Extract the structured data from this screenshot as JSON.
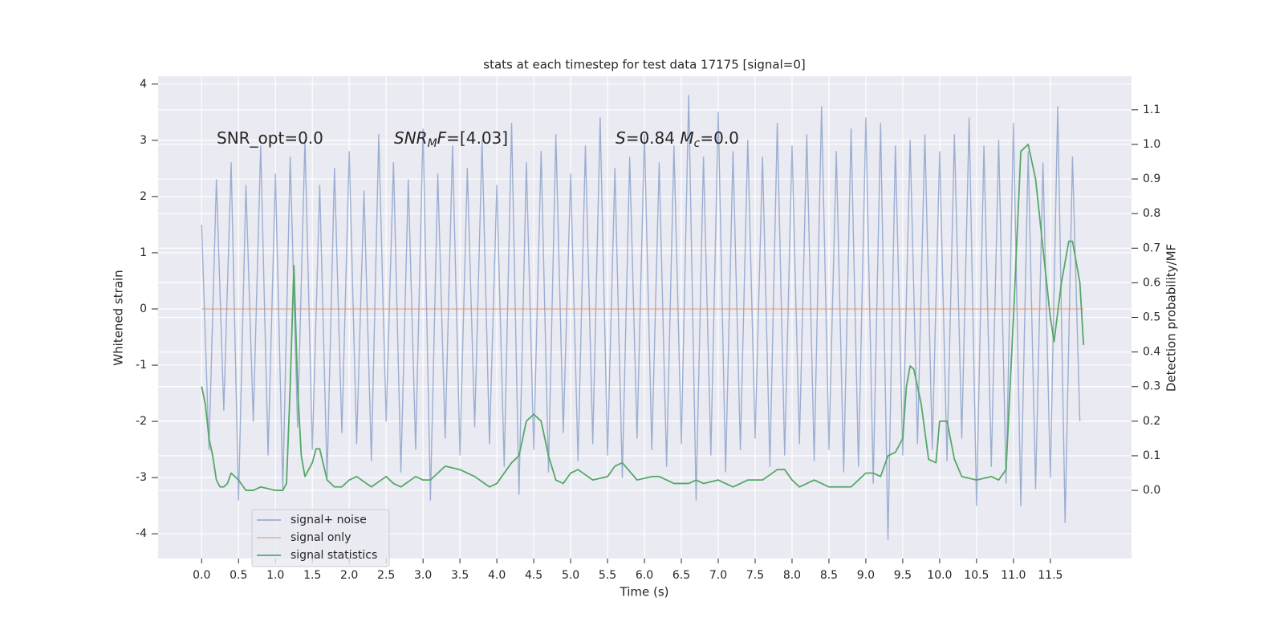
{
  "chart_data": {
    "type": "line",
    "title": "stats at each timestep for test data 17175 [signal=0]",
    "xlabel": "Time (s)",
    "ylabel": "Whitened strain",
    "y2label": "Detection probability/MF",
    "xlim": [
      -0.59,
      12.6
    ],
    "ylim": [
      -4.44,
      4.14
    ],
    "y2lim": [
      -0.197,
      1.197
    ],
    "xticks": [
      {
        "value": 0,
        "label": "0.0"
      },
      0.5,
      {
        "value": 1,
        "label": "1.0"
      },
      1.5,
      {
        "value": 2,
        "label": "2.0"
      },
      2.5,
      {
        "value": 3,
        "label": "3.0"
      },
      3.5,
      {
        "value": 4,
        "label": "4.0"
      },
      4.5,
      {
        "value": 5,
        "label": "5.0"
      },
      5.5,
      {
        "value": 6,
        "label": "6.0"
      },
      6.5,
      {
        "value": 7,
        "label": "7.0"
      },
      7.5,
      {
        "value": 8,
        "label": "8.0"
      },
      8.5,
      {
        "value": 9,
        "label": "9.0"
      },
      9.5,
      {
        "value": 10,
        "label": "10.0"
      },
      10.5,
      {
        "value": 11,
        "label": "11.0"
      },
      11.5
    ],
    "yticks": [
      -4,
      -3,
      -2,
      -1,
      0,
      1,
      2,
      3,
      4
    ],
    "y2ticks": [
      {
        "value": 0,
        "label": "0.0"
      },
      0.1,
      0.2,
      0.3,
      0.4,
      0.5,
      0.6,
      0.7,
      0.8,
      0.9,
      {
        "value": 1,
        "label": "1.0"
      },
      1.1
    ],
    "grid": true,
    "legend": "lower left",
    "annotations": [
      [
        {
          "text": "SNR_opt=0.0",
          "style": "normal"
        }
      ],
      [
        {
          "text": "SNR",
          "style": "italic"
        },
        {
          "text": "M",
          "style": "sub"
        },
        {
          "text": "F",
          "style": "italic"
        },
        {
          "text": "=[4.03]",
          "style": "normal"
        }
      ],
      [
        {
          "text": "S",
          "style": "italic"
        },
        {
          "text": "=0.84   ",
          "style": "normal"
        },
        {
          "text": "M",
          "style": "italic"
        },
        {
          "text": "c",
          "style": "sub"
        },
        {
          "text": "=0.0",
          "style": "normal"
        }
      ]
    ],
    "series": [
      {
        "name": "signal+ noise",
        "color": "#4c72b0",
        "opacity": 0.5,
        "x": [
          0.0,
          0.1,
          0.2,
          0.3,
          0.4,
          0.5,
          0.6,
          0.7,
          0.8,
          0.9,
          1.0,
          1.1,
          1.2,
          1.3,
          1.4,
          1.5,
          1.6,
          1.7,
          1.8,
          1.9,
          2.0,
          2.1,
          2.2,
          2.3,
          2.4,
          2.5,
          2.6,
          2.7,
          2.8,
          2.9,
          3.0,
          3.1,
          3.2,
          3.3,
          3.4,
          3.5,
          3.6,
          3.7,
          3.8,
          3.9,
          4.0,
          4.1,
          4.2,
          4.3,
          4.4,
          4.5,
          4.6,
          4.7,
          4.8,
          4.9,
          5.0,
          5.1,
          5.2,
          5.3,
          5.4,
          5.5,
          5.6,
          5.7,
          5.8,
          5.9,
          6.0,
          6.1,
          6.2,
          6.3,
          6.4,
          6.5,
          6.6,
          6.7,
          6.8,
          6.9,
          7.0,
          7.1,
          7.2,
          7.3,
          7.4,
          7.5,
          7.6,
          7.7,
          7.8,
          7.9,
          8.0,
          8.1,
          8.2,
          8.3,
          8.4,
          8.5,
          8.6,
          8.7,
          8.8,
          8.9,
          9.0,
          9.1,
          9.2,
          9.3,
          9.4,
          9.5,
          9.6,
          9.7,
          9.8,
          9.9,
          10.0,
          10.1,
          10.2,
          10.3,
          10.4,
          10.5,
          10.6,
          10.7,
          10.8,
          10.9,
          11.0,
          11.1,
          11.2,
          11.3,
          11.4,
          11.5,
          11.6,
          11.7,
          11.8,
          11.9
        ],
        "values": [
          1.5,
          -2.5,
          2.3,
          -1.8,
          2.6,
          -3.4,
          2.2,
          -2.0,
          2.9,
          -2.6,
          2.4,
          -3.2,
          2.7,
          -2.1,
          3.0,
          -2.5,
          2.2,
          -3.0,
          2.5,
          -2.2,
          2.8,
          -2.4,
          2.1,
          -2.7,
          3.1,
          -2.0,
          2.6,
          -2.9,
          2.3,
          -2.5,
          3.2,
          -3.4,
          2.4,
          -2.3,
          2.9,
          -2.6,
          2.5,
          -2.1,
          3.0,
          -2.4,
          2.2,
          -2.8,
          3.3,
          -3.3,
          2.6,
          -2.5,
          2.8,
          -2.9,
          3.1,
          -2.2,
          2.4,
          -2.7,
          2.9,
          -2.4,
          3.4,
          -2.6,
          2.5,
          -3.0,
          2.7,
          -2.3,
          3.1,
          -2.5,
          2.6,
          -2.8,
          2.9,
          -2.4,
          3.8,
          -3.4,
          2.7,
          -2.6,
          3.5,
          -2.9,
          2.8,
          -2.5,
          3.0,
          -2.3,
          2.7,
          -2.8,
          3.3,
          -2.6,
          2.9,
          -2.4,
          3.1,
          -2.7,
          3.6,
          -2.5,
          2.8,
          -2.9,
          3.2,
          -2.8,
          3.4,
          -3.1,
          3.3,
          -4.1,
          2.9,
          -2.6,
          3.0,
          -2.4,
          3.1,
          -2.5,
          2.8,
          -2.7,
          3.1,
          -2.3,
          3.4,
          -3.5,
          2.9,
          -2.8,
          3.0,
          -3.1,
          3.3,
          -3.5,
          2.8,
          -3.2,
          2.6,
          -3.0,
          3.6,
          -3.8,
          2.7,
          -2.0
        ]
      },
      {
        "name": "signal only",
        "color": "#dd8452",
        "opacity": 0.5,
        "x": [
          0.0,
          11.95
        ],
        "values": [
          0,
          0
        ]
      },
      {
        "name": "signal statistics",
        "color": "#55a868",
        "opacity": 1,
        "axis": "y2",
        "x": [
          0.0,
          0.05,
          0.1,
          0.15,
          0.2,
          0.25,
          0.3,
          0.35,
          0.4,
          0.5,
          0.6,
          0.7,
          0.8,
          1.0,
          1.1,
          1.15,
          1.2,
          1.25,
          1.3,
          1.35,
          1.4,
          1.5,
          1.55,
          1.6,
          1.7,
          1.8,
          1.9,
          2.0,
          2.1,
          2.3,
          2.5,
          2.6,
          2.7,
          2.9,
          3.0,
          3.1,
          3.3,
          3.5,
          3.7,
          3.9,
          4.0,
          4.2,
          4.3,
          4.4,
          4.5,
          4.6,
          4.7,
          4.8,
          4.9,
          5.0,
          5.1,
          5.3,
          5.5,
          5.6,
          5.7,
          5.9,
          6.1,
          6.2,
          6.4,
          6.6,
          6.7,
          6.8,
          7.0,
          7.2,
          7.4,
          7.6,
          7.8,
          7.9,
          8.0,
          8.1,
          8.3,
          8.5,
          8.8,
          9.0,
          9.1,
          9.2,
          9.3,
          9.4,
          9.5,
          9.55,
          9.6,
          9.65,
          9.75,
          9.85,
          9.95,
          10.0,
          10.1,
          10.2,
          10.3,
          10.5,
          10.7,
          10.8,
          10.9,
          11.0,
          11.1,
          11.2,
          11.3,
          11.4,
          11.5,
          11.55,
          11.65,
          11.75,
          11.8,
          11.9,
          11.95
        ],
        "values": [
          0.3,
          0.25,
          0.15,
          0.1,
          0.03,
          0.01,
          0.01,
          0.02,
          0.05,
          0.03,
          0.0,
          0.0,
          0.01,
          0.0,
          0.0,
          0.02,
          0.3,
          0.65,
          0.3,
          0.1,
          0.04,
          0.08,
          0.12,
          0.12,
          0.03,
          0.01,
          0.01,
          0.03,
          0.04,
          0.01,
          0.04,
          0.02,
          0.01,
          0.04,
          0.03,
          0.03,
          0.07,
          0.06,
          0.04,
          0.01,
          0.02,
          0.08,
          0.1,
          0.2,
          0.22,
          0.2,
          0.1,
          0.03,
          0.02,
          0.05,
          0.06,
          0.03,
          0.04,
          0.07,
          0.08,
          0.03,
          0.04,
          0.04,
          0.02,
          0.02,
          0.03,
          0.02,
          0.03,
          0.01,
          0.03,
          0.03,
          0.06,
          0.06,
          0.03,
          0.01,
          0.03,
          0.01,
          0.01,
          0.05,
          0.05,
          0.04,
          0.1,
          0.11,
          0.15,
          0.3,
          0.36,
          0.35,
          0.25,
          0.09,
          0.08,
          0.2,
          0.2,
          0.09,
          0.04,
          0.03,
          0.04,
          0.03,
          0.06,
          0.5,
          0.98,
          1.0,
          0.9,
          0.7,
          0.5,
          0.43,
          0.6,
          0.72,
          0.72,
          0.6,
          0.42
        ]
      }
    ]
  }
}
